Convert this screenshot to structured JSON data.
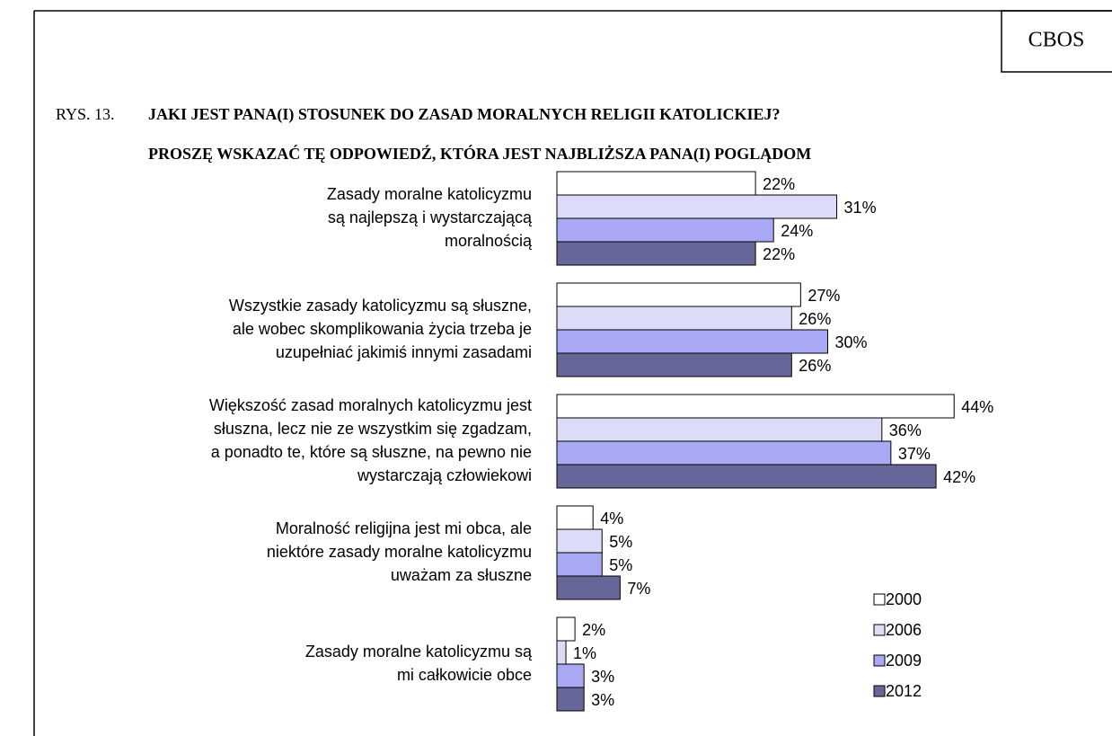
{
  "header": {
    "source": "CBOS",
    "figure": "RYS. 13."
  },
  "chart_data": {
    "type": "hbar",
    "title": [
      "JAKI JEST PANA(I) STOSUNEK DO ZASAD MORALNYCH RELIGII KATOLICKIEJ?",
      "PROSZĘ WSKAZAĆ TĘ ODPOWIEDŹ, KTÓRA JEST NAJBLIŻSZA PANA(I) POGLĄDOM"
    ],
    "categories": [
      [
        "Zasady moralne katolicyzmu",
        "są najlepszą i wystarczającą",
        "moralnością"
      ],
      [
        "Wszystkie zasady katolicyzmu są słuszne,",
        "ale wobec skomplikowania życia trzeba je",
        "uzupełniać jakimiś innymi zasadami"
      ],
      [
        "Większość zasad moralnych katolicyzmu jest",
        "słuszna, lecz nie ze wszystkim się zgadzam,",
        "a ponadto te, które są słuszne, na pewno nie",
        "wystarczają człowiekowi"
      ],
      [
        "Moralność religijna jest mi obca, ale",
        "niektóre zasady moralne katolicyzmu",
        "uważam za słuszne"
      ],
      [
        "Zasady moralne katolicyzmu są",
        "mi całkowicie obce"
      ]
    ],
    "series": [
      {
        "name": "2000",
        "color": "#ffffff",
        "values": [
          22,
          27,
          44,
          4,
          2
        ],
        "value_labels": [
          "22%",
          "27%",
          "44%",
          "4%",
          "2%"
        ]
      },
      {
        "name": "2006",
        "color": "#dcdcf8",
        "values": [
          31,
          26,
          36,
          5,
          1
        ],
        "value_labels": [
          "31%",
          "26%",
          "36%",
          "5%",
          "1%"
        ]
      },
      {
        "name": "2009",
        "color": "#a8a8f4",
        "values": [
          24,
          30,
          37,
          5,
          3
        ],
        "value_labels": [
          "24%",
          "30%",
          "37%",
          "5%",
          "3%"
        ]
      },
      {
        "name": "2012",
        "color": "#666699",
        "values": [
          22,
          26,
          42,
          7,
          3
        ],
        "value_labels": [
          "22%",
          "26%",
          "42%",
          "7%",
          "3%"
        ]
      }
    ],
    "legend": "bottom-right"
  }
}
